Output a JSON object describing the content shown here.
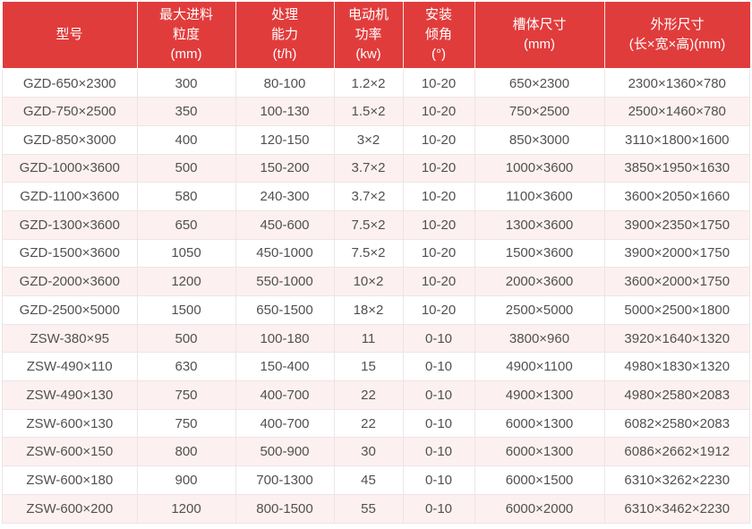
{
  "table": {
    "title": "feeder-specification-table",
    "columns": [
      {
        "id": "model",
        "label": "型号"
      },
      {
        "id": "max_feed_size",
        "label": "最大进料\n粒度\n(mm)"
      },
      {
        "id": "capacity",
        "label": "处理\n能力\n(t/h)"
      },
      {
        "id": "motor_power",
        "label": "电动机\n功率\n(kw)"
      },
      {
        "id": "install_angle",
        "label": "安装\n倾角\n(°)"
      },
      {
        "id": "trough_size",
        "label": "槽体尺寸\n(mm)"
      },
      {
        "id": "overall_dims",
        "label": "外形尺寸\n(长×宽×高)(mm)"
      }
    ],
    "rows": [
      [
        "GZD-650×2300",
        "300",
        "80-100",
        "1.2×2",
        "10-20",
        "650×2300",
        "2300×1360×780"
      ],
      [
        "GZD-750×2500",
        "350",
        "100-130",
        "1.5×2",
        "10-20",
        "750×2500",
        "2500×1460×780"
      ],
      [
        "GZD-850×3000",
        "400",
        "120-150",
        "3×2",
        "10-20",
        "850×3000",
        "3110×1800×1600"
      ],
      [
        "GZD-1000×3600",
        "500",
        "150-200",
        "3.7×2",
        "10-20",
        "1000×3600",
        "3850×1950×1630"
      ],
      [
        "GZD-1100×3600",
        "580",
        "240-300",
        "3.7×2",
        "10-20",
        "1100×3600",
        "3600×2050×1660"
      ],
      [
        "GZD-1300×3600",
        "650",
        "450-600",
        "7.5×2",
        "10-20",
        "1300×3600",
        "3900×2350×1750"
      ],
      [
        "GZD-1500×3600",
        "1050",
        "450-1000",
        "7.5×2",
        "10-20",
        "1500×3600",
        "3900×2000×1750"
      ],
      [
        "GZD-2000×3600",
        "1200",
        "550-1000",
        "10×2",
        "10-20",
        "2000×3600",
        "3600×2000×1750"
      ],
      [
        "GZD-2500×5000",
        "1500",
        "650-1500",
        "18×2",
        "10-20",
        "2500×5000",
        "5000×2500×1800"
      ],
      [
        "ZSW-380×95",
        "500",
        "100-180",
        "11",
        "0-10",
        "3800×960",
        "3920×1640×1320"
      ],
      [
        "ZSW-490×110",
        "630",
        "150-400",
        "15",
        "0-10",
        "4900×1100",
        "4980×1830×1320"
      ],
      [
        "ZSW-490×130",
        "750",
        "400-700",
        "22",
        "0-10",
        "4900×1300",
        "4980×2580×2083"
      ],
      [
        "ZSW-600×130",
        "750",
        "400-700",
        "22",
        "0-10",
        "6000×1300",
        "6082×2580×2083"
      ],
      [
        "ZSW-600×150",
        "800",
        "500-900",
        "30",
        "0-10",
        "6000×1300",
        "6086×2662×1912"
      ],
      [
        "ZSW-600×180",
        "900",
        "700-1300",
        "45",
        "0-10",
        "6000×1500",
        "6310×3262×2230"
      ],
      [
        "ZSW-600×200",
        "1200",
        "800-1500",
        "55",
        "0-10",
        "6000×2000",
        "6310×3462×2230"
      ]
    ]
  },
  "colors": {
    "header_bg": "#e13c3c",
    "header_text": "#ffffff",
    "row_bg": "#ffffff",
    "row_alt_bg": "#fdf0f0",
    "cell_text": "#505050",
    "cell_border": "#ece5e5"
  }
}
